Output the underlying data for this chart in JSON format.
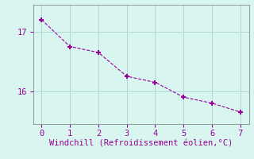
{
  "x": [
    0,
    1,
    2,
    3,
    4,
    5,
    6,
    7
  ],
  "y": [
    17.2,
    16.75,
    16.65,
    16.25,
    16.15,
    15.9,
    15.8,
    15.65
  ],
  "line_color": "#990099",
  "marker": "+",
  "marker_size": 5,
  "marker_linewidth": 1.5,
  "xlabel": "Windchill (Refroidissement éolien,°C)",
  "xlabel_color": "#990099",
  "xlabel_fontsize": 7.5,
  "background_color": "#d8f5f0",
  "grid_color": "#b0d8d8",
  "tick_color": "#990099",
  "yticks": [
    16,
    17
  ],
  "xticks": [
    0,
    1,
    2,
    3,
    4,
    5,
    6,
    7
  ],
  "xlim": [
    -0.3,
    7.3
  ],
  "ylim": [
    15.45,
    17.45
  ],
  "spine_color": "#888888",
  "tick_fontsize": 7.5
}
